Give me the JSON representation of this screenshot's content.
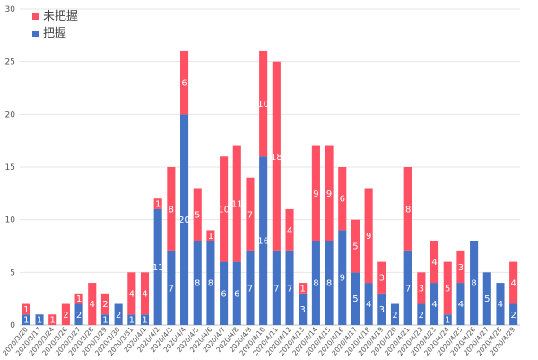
{
  "chart_data": {
    "type": "bar",
    "stacked": true,
    "categories": [
      "2020/3/20",
      "2020/3/17",
      "2020/3/24",
      "2020/3/26",
      "2020/3/27",
      "2020/3/28",
      "2020/3/29",
      "2020/3/30",
      "2020/3/31",
      "2020/4/1",
      "2020/4/2",
      "2020/4/3",
      "2020/4/4",
      "2020/4/5",
      "2020/4/6",
      "2020/4/7",
      "2020/4/8",
      "2020/4/9",
      "2020/4/10",
      "2020/4/11",
      "2020/4/12",
      "2020/4/13",
      "2020/4/14",
      "2020/4/15",
      "2020/4/16",
      "2020/4/17",
      "2020/4/18",
      "2020/4/19",
      "2020/4/20",
      "2020/4/21",
      "2020/4/22",
      "2020/4/23",
      "2020/4/24",
      "2020/4/25",
      "2020/4/26",
      "2020/4/27",
      "2020/4/28",
      "2020/4/29"
    ],
    "series": [
      {
        "name": "把握",
        "color": "#4472C4",
        "values": [
          1,
          1,
          0,
          0,
          2,
          0,
          1,
          2,
          1,
          1,
          11,
          7,
          20,
          8,
          8,
          6,
          6,
          7,
          16,
          7,
          7,
          3,
          8,
          8,
          9,
          5,
          4,
          3,
          2,
          7,
          2,
          4,
          1,
          4,
          8,
          5,
          4,
          2
        ]
      },
      {
        "name": "未把握",
        "color": "#FF5064",
        "values": [
          1,
          0,
          1,
          2,
          1,
          4,
          2,
          0,
          4,
          4,
          1,
          8,
          6,
          5,
          1,
          10,
          11,
          7,
          10,
          18,
          4,
          1,
          9,
          9,
          6,
          5,
          9,
          3,
          0,
          8,
          3,
          4,
          5,
          3,
          0,
          0,
          0,
          4
        ]
      }
    ],
    "ylim": [
      0,
      30
    ],
    "yticks": [
      0,
      5,
      10,
      15,
      20,
      25,
      30
    ],
    "grid": true,
    "legend": "top-left",
    "title": "",
    "xlabel": "",
    "ylabel": ""
  }
}
